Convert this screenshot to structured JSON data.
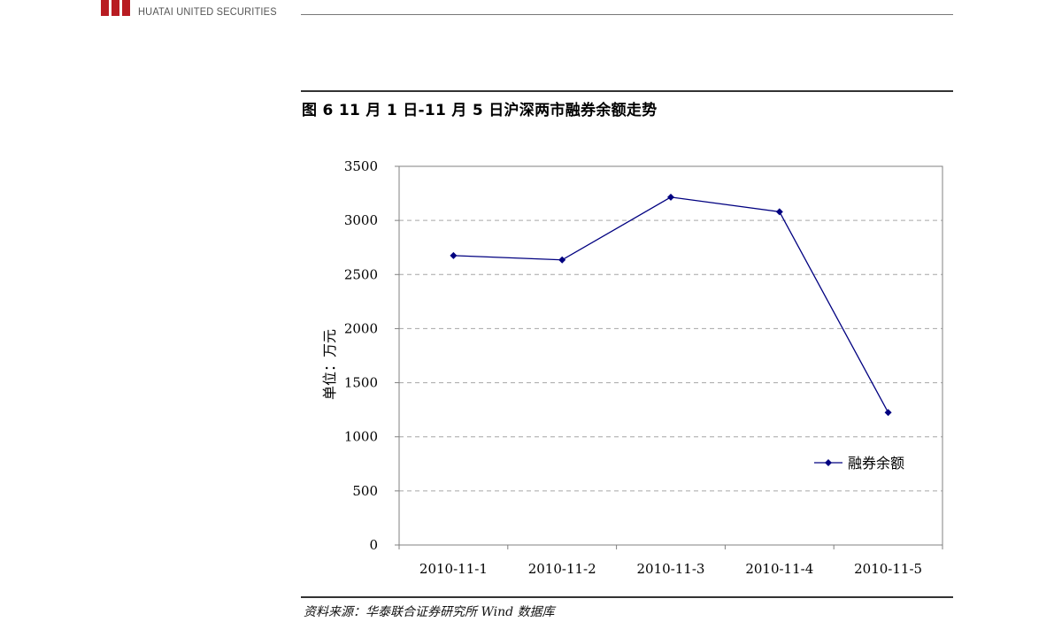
{
  "header": {
    "logo_en": "HUATAI UNITED SECURITIES"
  },
  "figure": {
    "title": "图 6   11 月 1 日-11 月 5 日沪深两市融券余额走势",
    "source": "资料来源：华泰联合证券研究所   Wind 数据库"
  },
  "colors": {
    "series": "#000080",
    "brand": "#b81c22",
    "grid": "#a6a6a6"
  },
  "chart_data": {
    "type": "line",
    "title": "",
    "ylabel": "单位：万元",
    "xlabel": "",
    "categories": [
      "2010-11-1",
      "2010-11-2",
      "2010-11-3",
      "2010-11-4",
      "2010-11-5"
    ],
    "series": [
      {
        "name": "融券余额",
        "values": [
          2675,
          2635,
          3215,
          3080,
          1225
        ]
      }
    ],
    "ylim": [
      0,
      3500
    ],
    "yticks": [
      0,
      500,
      1000,
      1500,
      2000,
      2500,
      3000,
      3500
    ],
    "grid": true,
    "legend_position": "lower-right",
    "marker": "diamond"
  }
}
